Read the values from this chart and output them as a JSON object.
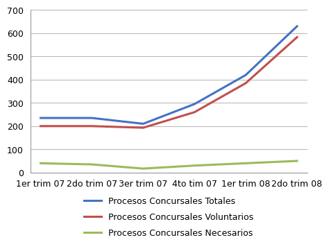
{
  "categories": [
    "1er trim 07",
    "2do trim 07",
    "3er trim 07",
    "4to tim 07",
    "1er trim 08",
    "2do trim 08"
  ],
  "series": [
    {
      "label": "Procesos Concursales Totales",
      "values": [
        235,
        235,
        210,
        295,
        420,
        630
      ],
      "color": "#4472C4"
    },
    {
      "label": "Procesos Concursales Voluntarios",
      "values": [
        200,
        200,
        193,
        260,
        385,
        583
      ],
      "color": "#C0504D"
    },
    {
      "label": "Procesos Concursales Necesarios",
      "values": [
        40,
        35,
        17,
        30,
        40,
        50
      ],
      "color": "#9BBB59"
    }
  ],
  "ylim": [
    0,
    700
  ],
  "yticks": [
    0,
    100,
    200,
    300,
    400,
    500,
    600,
    700
  ],
  "grid_color": "#BBBBBB",
  "background_color": "#FFFFFF",
  "line_width": 2.2,
  "tick_fontsize": 9,
  "legend_fontsize": 9
}
